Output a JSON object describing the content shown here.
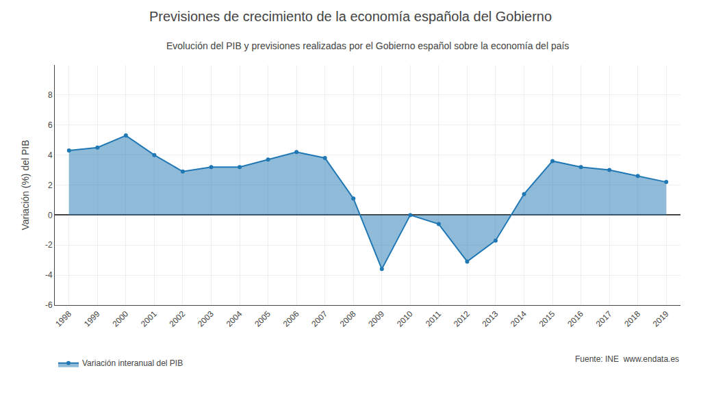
{
  "chart_data": {
    "type": "area",
    "title": "Previsiones de crecimiento de la economía española del Gobierno",
    "subtitle": "Evolución del PIB y previsiones realizadas por el Gobierno español sobre la economía del país",
    "y_label": "Variación (%) del PIB",
    "source": "Fuente: INE  www.endata.es",
    "x": [
      1998,
      1999,
      2000,
      2001,
      2002,
      2003,
      2004,
      2005,
      2006,
      2007,
      2008,
      2009,
      2010,
      2011,
      2012,
      2013,
      2014,
      2015,
      2016,
      2017,
      2018,
      2019
    ],
    "series": [
      {
        "name": "Variación interanual del PIB",
        "values": [
          4.3,
          4.5,
          5.3,
          4.0,
          2.9,
          3.2,
          3.2,
          3.7,
          4.2,
          3.8,
          1.1,
          -3.6,
          0.0,
          -0.6,
          -3.1,
          -1.7,
          1.4,
          3.6,
          3.2,
          3.0,
          2.6,
          2.2
        ],
        "marker": "circle"
      }
    ],
    "xlim": [
      1997.5,
      2019.5
    ],
    "xticks": [
      1998,
      1999,
      2000,
      2001,
      2002,
      2003,
      2004,
      2005,
      2006,
      2007,
      2008,
      2009,
      2010,
      2011,
      2012,
      2013,
      2014,
      2015,
      2016,
      2017,
      2018,
      2019
    ],
    "ylim": [
      -6,
      10
    ],
    "yticks": [
      -6,
      -4,
      -2,
      0,
      2,
      4,
      6,
      8
    ],
    "grid": true,
    "legend": "lower left"
  }
}
